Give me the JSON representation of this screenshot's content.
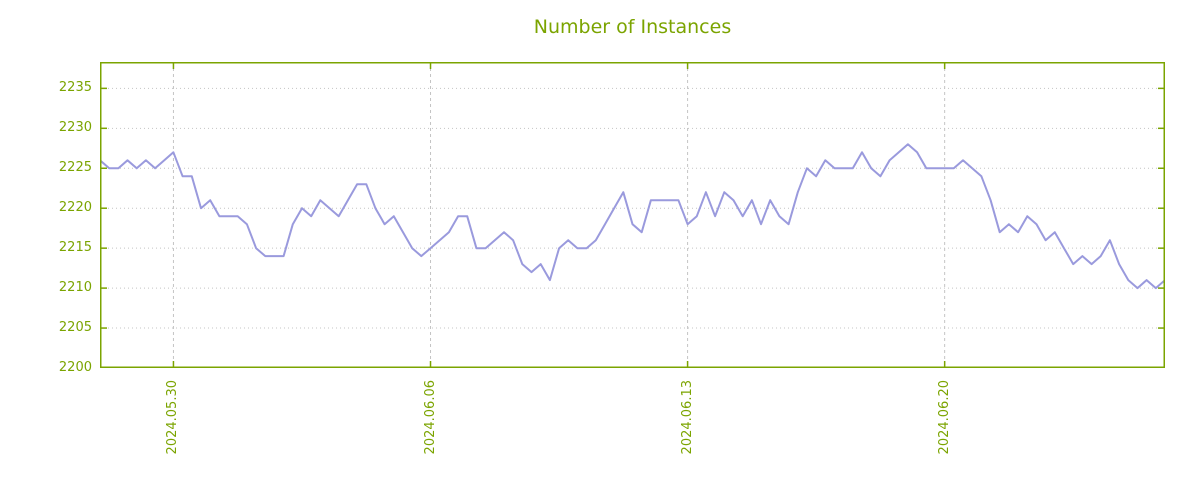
{
  "colors": {
    "accent": "#7ba400",
    "line": "#9a9add",
    "grid": "#c4c4c4",
    "background": "#ffffff"
  },
  "chart_data": {
    "type": "line",
    "title": "Number of Instances",
    "xlabel": "",
    "ylabel": "",
    "grid": true,
    "legend": "none",
    "ylim": [
      2200,
      2238.3
    ],
    "y_ticks": [
      2200,
      2205,
      2210,
      2215,
      2220,
      2225,
      2230,
      2235
    ],
    "x_range_days": [
      0,
      29
    ],
    "x_ticks": [
      {
        "day": 2,
        "label": "2024.05.30"
      },
      {
        "day": 9,
        "label": "2024.06.06"
      },
      {
        "day": 16,
        "label": "2024.06.13"
      },
      {
        "day": 23,
        "label": "2024.06.20"
      }
    ],
    "values": [
      2226,
      2225,
      2225,
      2226,
      2225,
      2226,
      2225,
      2226,
      2227,
      2224,
      2224,
      2220,
      2221,
      2219,
      2219,
      2219,
      2218,
      2215,
      2214,
      2214,
      2214,
      2218,
      2220,
      2219,
      2221,
      2220,
      2219,
      2221,
      2223,
      2223,
      2220,
      2218,
      2219,
      2217,
      2215,
      2214,
      2215,
      2216,
      2217,
      2219,
      2219,
      2215,
      2215,
      2216,
      2217,
      2216,
      2213,
      2212,
      2213,
      2211,
      2215,
      2216,
      2215,
      2215,
      2216,
      2218,
      2220,
      2222,
      2218,
      2217,
      2221,
      2221,
      2221,
      2221,
      2218,
      2219,
      2222,
      2219,
      2222,
      2221,
      2219,
      2221,
      2218,
      2221,
      2219,
      2218,
      2222,
      2225,
      2224,
      2226,
      2225,
      2225,
      2225,
      2227,
      2225,
      2224,
      2226,
      2227,
      2228,
      2227,
      2225,
      2225,
      2225,
      2225,
      2226,
      2225,
      2224,
      2221,
      2217,
      2218,
      2217,
      2219,
      2218,
      2216,
      2217,
      2215,
      2213,
      2214,
      2213,
      2214,
      2216,
      2213,
      2211,
      2210,
      2211,
      2210,
      2211
    ]
  }
}
